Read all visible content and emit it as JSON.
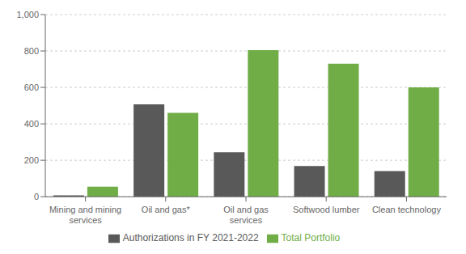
{
  "chart_data": {
    "type": "bar",
    "categories": [
      "Mining and mining\nservices",
      "Oil and gas*",
      "Oil and gas\nservices",
      "Softwood lumber",
      "Clean technology"
    ],
    "series": [
      {
        "name": "Authorizations in FY 2021-2022",
        "color": "#595959",
        "values": [
          7.4,
          507,
          244,
          168,
          141
        ]
      },
      {
        "name": "Total Portfolio",
        "color": "#70ad47",
        "values": [
          55,
          460,
          805,
          730,
          600
        ]
      }
    ],
    "ylim": [
      0,
      1000
    ],
    "yticks": [
      0,
      200,
      400,
      600,
      800,
      {
        "value": 1000,
        "label": "1,000"
      }
    ],
    "grid": true,
    "legend": "bottom"
  }
}
